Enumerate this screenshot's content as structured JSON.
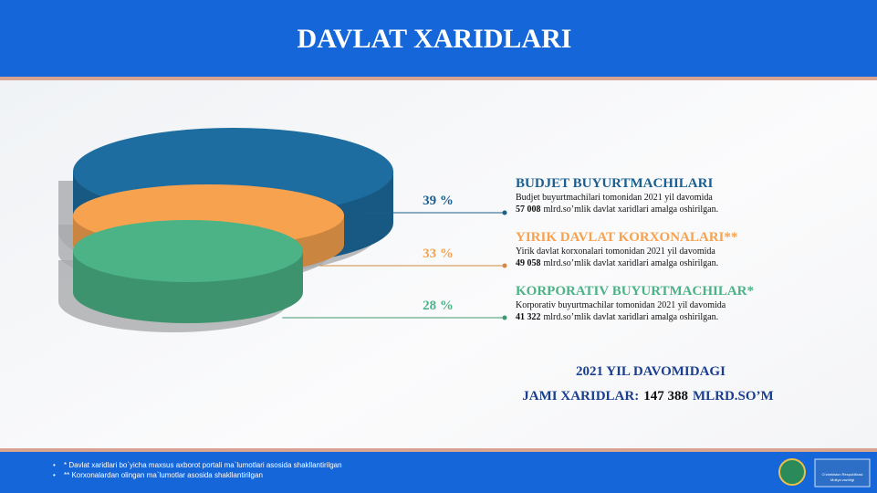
{
  "title": "DAVLAT XARIDLARI",
  "chart_data": {
    "type": "cylinder",
    "categories": [
      "BUDJET BUYURTMACHILARI",
      "YIRIK DAVLAT KORXONALARI**",
      "KORPORATIV BUYURTMACHILAR*"
    ],
    "values": [
      39,
      33,
      28
    ],
    "value_labels": [
      "39 %",
      "33 %",
      "28 %"
    ],
    "colors": [
      "#1d6da0",
      "#f6a24f",
      "#4bb386"
    ]
  },
  "descriptions": [
    {
      "text": "Budjet buyurtmachilari tomonidan 2021 yil davomida",
      "amount": "57 008",
      "unit": "mlrd.so’mlik davlat xaridlari amalga oshirilgan."
    },
    {
      "text": "Yirik davlat korxonalari tomonidan 2021 yil davomida",
      "amount": "49 058",
      "unit": "mlrd.so’mlik davlat xaridlari amalga oshirilgan."
    },
    {
      "text": "Korporativ buyurtmachilar tomonidan 2021 yil davomida",
      "amount": "41 322",
      "unit": "mlrd.so’mlik davlat xaridlari amalga oshirilgan."
    }
  ],
  "total": {
    "line1": "2021 YIL DAVOMIDAGI",
    "label": "JAMI XARIDLAR:",
    "amount": "147 388",
    "unit": "MLRD.SO’M"
  },
  "footnotes": [
    "* Davlat xaridlari bo`yicha maxsus axborot portali ma`lumotlari asosida shakllantirilgan",
    "** Korxonalardan olingan ma`lumotlar asosida shakllantirilgan"
  ],
  "logo": [
    "O‘zbekiston Respublikasi",
    "Moliya vazirligi"
  ]
}
